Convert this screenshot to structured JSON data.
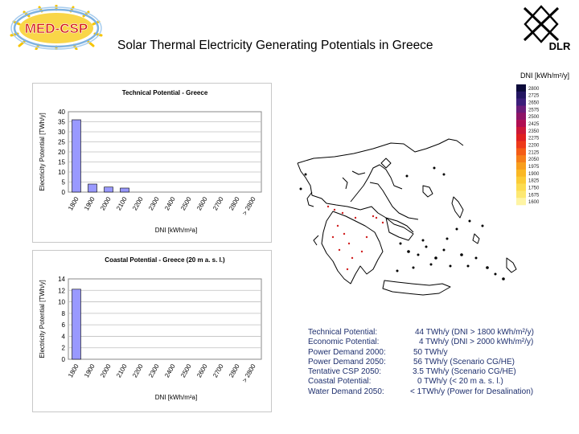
{
  "header": {
    "title": "Solar Thermal Electricity Generating Potentials in Greece",
    "logo_left_text": "MED-CSP",
    "logo_right_text": "DLR"
  },
  "map": {
    "legend_title": "DNI [kWh/m²/y]",
    "legend_values": [
      "2800",
      "2725",
      "2650",
      "2575",
      "2500",
      "2425",
      "2350",
      "2275",
      "2200",
      "2125",
      "2050",
      "1975",
      "1900",
      "1825",
      "1750",
      "1675",
      "1600"
    ],
    "legend_colors": [
      "#0c0a3a",
      "#241662",
      "#3c1e7a",
      "#6a1c78",
      "#8e1466",
      "#b00e52",
      "#cc1838",
      "#e02020",
      "#ee3a1a",
      "#f45c16",
      "#f67e18",
      "#f89e1c",
      "#fab824",
      "#fbcc36",
      "#fcdc50",
      "#fde872",
      "#fef4a4"
    ]
  },
  "chart_data": [
    {
      "type": "bar",
      "title": "Technical Potential - Greece",
      "xlabel": "DNI [kWh/m²a]",
      "ylabel": "Electricity Potential [TWh/y]",
      "categories": [
        "1800",
        "1900",
        "2000",
        "2100",
        "2200",
        "2300",
        "2400",
        "2500",
        "2600",
        "2700",
        "2800",
        "> 2800"
      ],
      "values": [
        36,
        4,
        2.5,
        2,
        0,
        0,
        0,
        0,
        0,
        0,
        0,
        0
      ],
      "ylim": [
        0,
        40
      ],
      "yticks": [
        "0",
        "5",
        "10",
        "15",
        "20",
        "25",
        "30",
        "35",
        "40"
      ],
      "bar_color": "#9999ff",
      "grid": true
    },
    {
      "type": "bar",
      "title": "Coastal Potential - Greece (20 m a. s. l.)",
      "xlabel": "DNI [kWh/m²a]",
      "ylabel": "Electricity Potential [TWh/y]",
      "categories": [
        "1800",
        "1900",
        "2000",
        "2100",
        "2200",
        "2300",
        "2400",
        "2500",
        "2600",
        "2700",
        "2800",
        "> 2800"
      ],
      "values": [
        12.2,
        0,
        0,
        0,
        0,
        0,
        0,
        0,
        0,
        0,
        0,
        0
      ],
      "ylim": [
        0,
        14
      ],
      "yticks": [
        "0",
        "2",
        "4",
        "6",
        "8",
        "10",
        "12",
        "14"
      ],
      "bar_color": "#9999ff",
      "grid": true
    }
  ],
  "stats": [
    {
      "label": "Technical Potential:",
      "value": "44 TWh/y (DNI > 1800 kWh/m²/y)"
    },
    {
      "label": "Economic Potential:",
      "value": "4 TWh/y (DNI > 2000 kWh/m²/y)"
    },
    {
      "label": "Power Demand 2000:",
      "value": "50 TWh/y"
    },
    {
      "label": "Power Demand 2050:",
      "value": "56 TWh/y (Scenario CG/HE)"
    },
    {
      "label": "Tentative CSP 2050:",
      "value": "3.5 TWh/y (Scenario CG/HE)"
    },
    {
      "label": "Coastal Potential:",
      "value": "0 TWh/y (< 20 m a. s. l.)"
    },
    {
      "label": "Water Demand 2050:",
      "value": "< 1TWh/y (Power for Desalination)"
    }
  ]
}
